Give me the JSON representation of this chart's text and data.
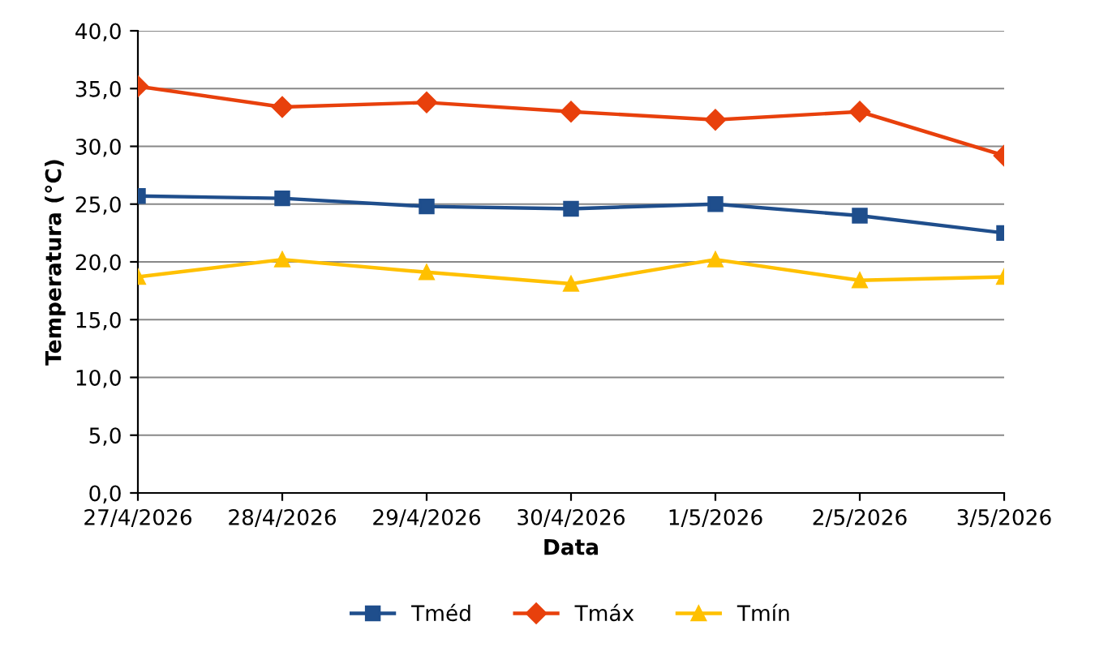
{
  "chart_data": {
    "type": "line",
    "xlabel": "Data",
    "ylabel": "Temperatura (°C)",
    "categories": [
      "27/4/2026",
      "28/4/2026",
      "29/4/2026",
      "30/4/2026",
      "1/5/2026",
      "2/5/2026",
      "3/5/2026"
    ],
    "series": [
      {
        "name": "Tméd",
        "color": "#1f4e8c",
        "marker": "square",
        "values": [
          25.7,
          25.5,
          24.8,
          24.6,
          25.0,
          24.0,
          22.5
        ]
      },
      {
        "name": "Tmáx",
        "color": "#e8400c",
        "marker": "diamond",
        "values": [
          35.2,
          33.4,
          33.8,
          33.0,
          32.3,
          33.0,
          29.2
        ]
      },
      {
        "name": "Tmín",
        "color": "#ffc000",
        "marker": "triangle",
        "values": [
          18.7,
          20.2,
          19.1,
          18.1,
          20.2,
          18.4,
          18.7
        ]
      }
    ],
    "ylim": [
      0,
      40
    ],
    "yticks": [
      {
        "value": 0,
        "label": "0,0"
      },
      {
        "value": 5,
        "label": "5,0"
      },
      {
        "value": 10,
        "label": "10,0"
      },
      {
        "value": 15,
        "label": "15,0"
      },
      {
        "value": 20,
        "label": "20,0"
      },
      {
        "value": 25,
        "label": "25,0"
      },
      {
        "value": 30,
        "label": "30,0"
      },
      {
        "value": 35,
        "label": "35,0"
      },
      {
        "value": 40,
        "label": "40,0"
      }
    ],
    "grid": "y",
    "legend": "bottom",
    "line_style": "solid"
  }
}
